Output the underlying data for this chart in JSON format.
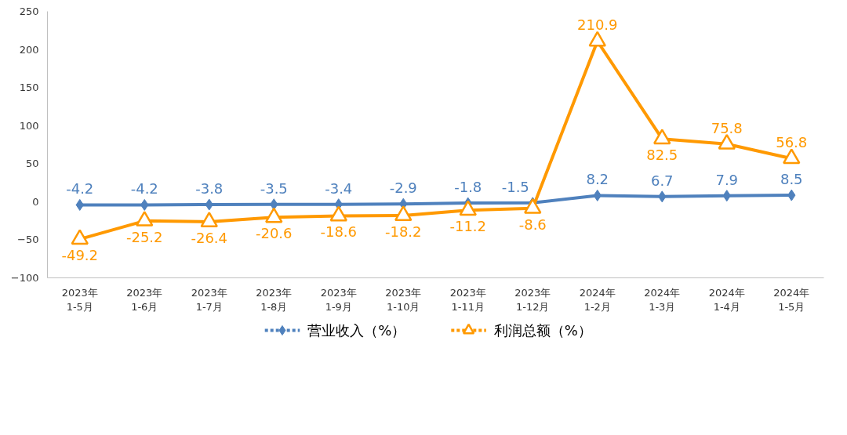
{
  "chart_data": {
    "type": "line",
    "categories": [
      "2023年\n1-5月",
      "2023年\n1-6月",
      "2023年\n1-7月",
      "2023年\n1-8月",
      "2023年\n1-9月",
      "2023年\n1-10月",
      "2023年\n1-11月",
      "2023年\n1-12月",
      "2024年\n1-2月",
      "2024年\n1-3月",
      "2024年\n1-4月",
      "2024年\n1-5月"
    ],
    "series": [
      {
        "name": "营业收入（%）",
        "color": "#4f81bd",
        "marker": "diamond",
        "values": [
          -4.2,
          -4.2,
          -3.8,
          -3.5,
          -3.4,
          -2.9,
          -1.8,
          -1.5,
          8.2,
          6.7,
          7.9,
          8.5
        ]
      },
      {
        "name": "利润总额（%）",
        "color": "#ff9900",
        "marker": "triangle",
        "values": [
          -49.2,
          -25.2,
          -26.4,
          -20.6,
          -18.6,
          -18.2,
          -11.2,
          -8.6,
          210.9,
          82.5,
          75.8,
          56.8
        ]
      }
    ],
    "ylim": [
      -100,
      250
    ],
    "yticks": [
      -100,
      -50,
      0,
      50,
      100,
      150,
      200,
      250
    ],
    "grid": false,
    "legend": "bottom",
    "data_labels": true
  }
}
